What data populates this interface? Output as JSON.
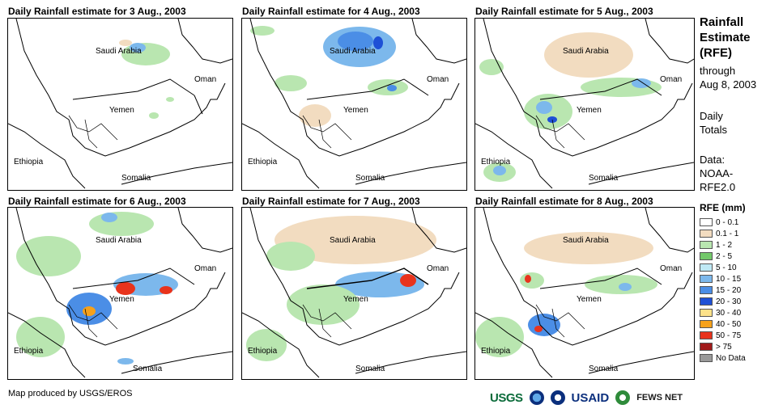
{
  "panels": [
    {
      "title": "Daily Rainfall estimate for 3 Aug., 2003"
    },
    {
      "title": "Daily Rainfall estimate for 4 Aug., 2003"
    },
    {
      "title": "Daily Rainfall estimate for 5 Aug., 2003"
    },
    {
      "title": "Daily Rainfall estimate for 6 Aug., 2003"
    },
    {
      "title": "Daily Rainfall estimate for 7 Aug., 2003"
    },
    {
      "title": "Daily Rainfall estimate for 8 Aug., 2003"
    }
  ],
  "places": {
    "saudi": "Saudi Arabia",
    "oman": "Oman",
    "yemen": "Yemen",
    "ethiopia": "Ethiopia",
    "somalia": "Somalia"
  },
  "sidebar": {
    "title1": "Rainfall",
    "title2": "Estimate",
    "title3": "(RFE)",
    "sub1": "through",
    "sub2": "Aug 8, 2003",
    "daily1": "Daily",
    "daily2": "Totals",
    "data1": "Data:",
    "data2": "NOAA-",
    "data3": "RFE2.0"
  },
  "legend": {
    "title": "RFE (mm)",
    "items": [
      {
        "label": "0 - 0.1",
        "color": "#ffffff"
      },
      {
        "label": "0.1 - 1",
        "color": "#f2dcc0"
      },
      {
        "label": "1 - 2",
        "color": "#b9e6b0"
      },
      {
        "label": "2 - 5",
        "color": "#73c96a"
      },
      {
        "label": "5 - 10",
        "color": "#bfe9f5"
      },
      {
        "label": "10 - 15",
        "color": "#7cb8ec"
      },
      {
        "label": "15 - 20",
        "color": "#4b8ee6"
      },
      {
        "label": "20 - 30",
        "color": "#1e50d6"
      },
      {
        "label": "30 - 40",
        "color": "#fde28a"
      },
      {
        "label": "40 - 50",
        "color": "#f6a11a"
      },
      {
        "label": "50 - 75",
        "color": "#e8331c"
      },
      {
        "label": "> 75",
        "color": "#a11a1a"
      },
      {
        "label": "No Data",
        "color": "#9a9a9a"
      }
    ]
  },
  "footer": {
    "credit": "Map produced by USGS/EROS",
    "usgs": "USGS",
    "usaid": "USAID",
    "fews": "FEWS NET"
  }
}
